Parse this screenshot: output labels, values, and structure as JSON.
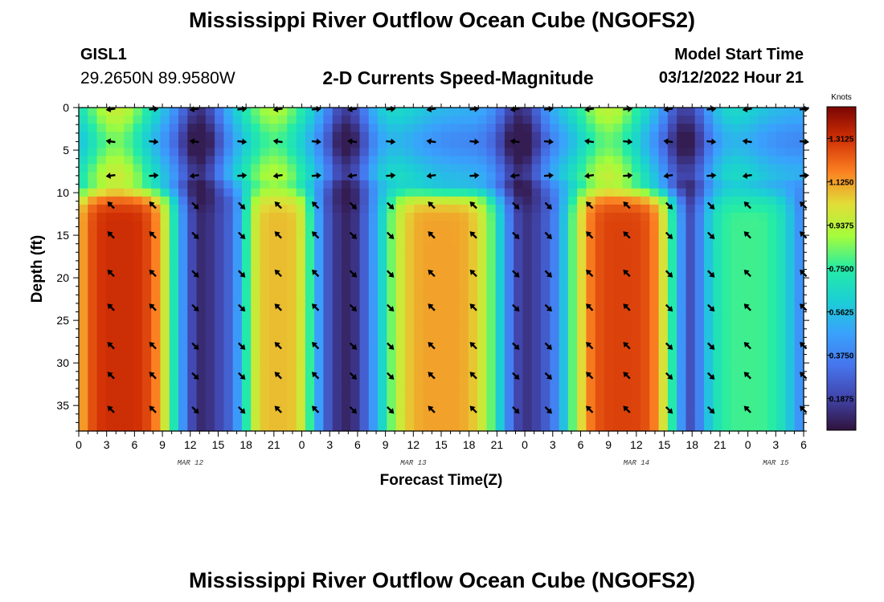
{
  "header": {
    "title": "Mississippi River Outflow Ocean Cube (NGOFS2)",
    "station_id": "GISL1",
    "coordinates": "29.2650N  89.9580W",
    "plot_title": "2-D Currents Speed-Magnitude",
    "model_start_label": "Model Start Time",
    "model_start_value": "03/12/2022 Hour 21"
  },
  "footer": {
    "title": "Mississippi River Outflow Ocean Cube (NGOFS2)"
  },
  "chart_data": {
    "type": "heatmap",
    "title": "2-D Currents Speed-Magnitude",
    "xlabel": "Forecast Time(Z)",
    "ylabel": "Depth (ft)",
    "x_range_hours": [
      0,
      78
    ],
    "ylim": [
      0,
      38
    ],
    "y_ticks": [
      0,
      5,
      10,
      15,
      20,
      25,
      30,
      35
    ],
    "x_ticks": [
      {
        "h": 0,
        "label": "0"
      },
      {
        "h": 3,
        "label": "3"
      },
      {
        "h": 6,
        "label": "6"
      },
      {
        "h": 9,
        "label": "9"
      },
      {
        "h": 12,
        "label": "12"
      },
      {
        "h": 15,
        "label": "15"
      },
      {
        "h": 18,
        "label": "18"
      },
      {
        "h": 21,
        "label": "21"
      },
      {
        "h": 24,
        "label": "0"
      },
      {
        "h": 27,
        "label": "3"
      },
      {
        "h": 30,
        "label": "6"
      },
      {
        "h": 33,
        "label": "9"
      },
      {
        "h": 36,
        "label": "12"
      },
      {
        "h": 39,
        "label": "15"
      },
      {
        "h": 42,
        "label": "18"
      },
      {
        "h": 45,
        "label": "21"
      },
      {
        "h": 48,
        "label": "0"
      },
      {
        "h": 51,
        "label": "3"
      },
      {
        "h": 54,
        "label": "6"
      },
      {
        "h": 57,
        "label": "9"
      },
      {
        "h": 60,
        "label": "12"
      },
      {
        "h": 63,
        "label": "15"
      },
      {
        "h": 66,
        "label": "18"
      },
      {
        "h": 69,
        "label": "21"
      },
      {
        "h": 72,
        "label": "0"
      },
      {
        "h": 75,
        "label": "3"
      },
      {
        "h": 78,
        "label": "6"
      }
    ],
    "date_labels": [
      {
        "h": 12,
        "label": "MAR 12"
      },
      {
        "h": 36,
        "label": "MAR 13"
      },
      {
        "h": 60,
        "label": "MAR 14"
      },
      {
        "h": 75,
        "label": "MAR 15"
      }
    ],
    "colorbar": {
      "unit": "Knots",
      "min": 0.05,
      "max": 1.45,
      "ticks": [
        "1.3125",
        "1.1250",
        "0.9375",
        "0.7500",
        "0.5625",
        "0.3750",
        "0.1875"
      ],
      "tick_values": [
        1.3125,
        1.125,
        0.9375,
        0.75,
        0.5625,
        0.375,
        0.1875
      ]
    },
    "lower_layer": {
      "description_depth_ft": [
        11,
        38
      ],
      "peaks": [
        {
          "center_h": 4.5,
          "half_width_h": 4.5,
          "speed": 1.32
        },
        {
          "center_h": 21.5,
          "half_width_h": 3.0,
          "speed": 1.08
        },
        {
          "center_h": 39.0,
          "half_width_h": 5.0,
          "speed": 1.12
        },
        {
          "center_h": 58.5,
          "half_width_h": 4.5,
          "speed": 1.28
        },
        {
          "center_h": 72.0,
          "half_width_h": 4.0,
          "speed": 0.78
        }
      ]
    },
    "upper_layer": {
      "description_depth_ft": [
        0,
        10
      ],
      "peaks": [
        {
          "center_h": 4.0,
          "speed": 0.9
        },
        {
          "center_h": 21.0,
          "speed": 0.85
        },
        {
          "center_h": 33.5,
          "speed": 0.6
        },
        {
          "center_h": 57.0,
          "speed": 0.88
        },
        {
          "center_h": 70.0,
          "speed": 0.6
        }
      ],
      "troughs_h": [
        13,
        29,
        47.5,
        65.5
      ]
    },
    "arrow_depths_ft": [
      0,
      4,
      8,
      11.5,
      15,
      19.5,
      23.5,
      28,
      31.5,
      35.5
    ],
    "arrow_hours": [
      3.5,
      8,
      12.5,
      17.5,
      21.5,
      25.5,
      29.5,
      33.5,
      38,
      42.5,
      47,
      50.5,
      55,
      59,
      63.5,
      68,
      72,
      78
    ]
  }
}
